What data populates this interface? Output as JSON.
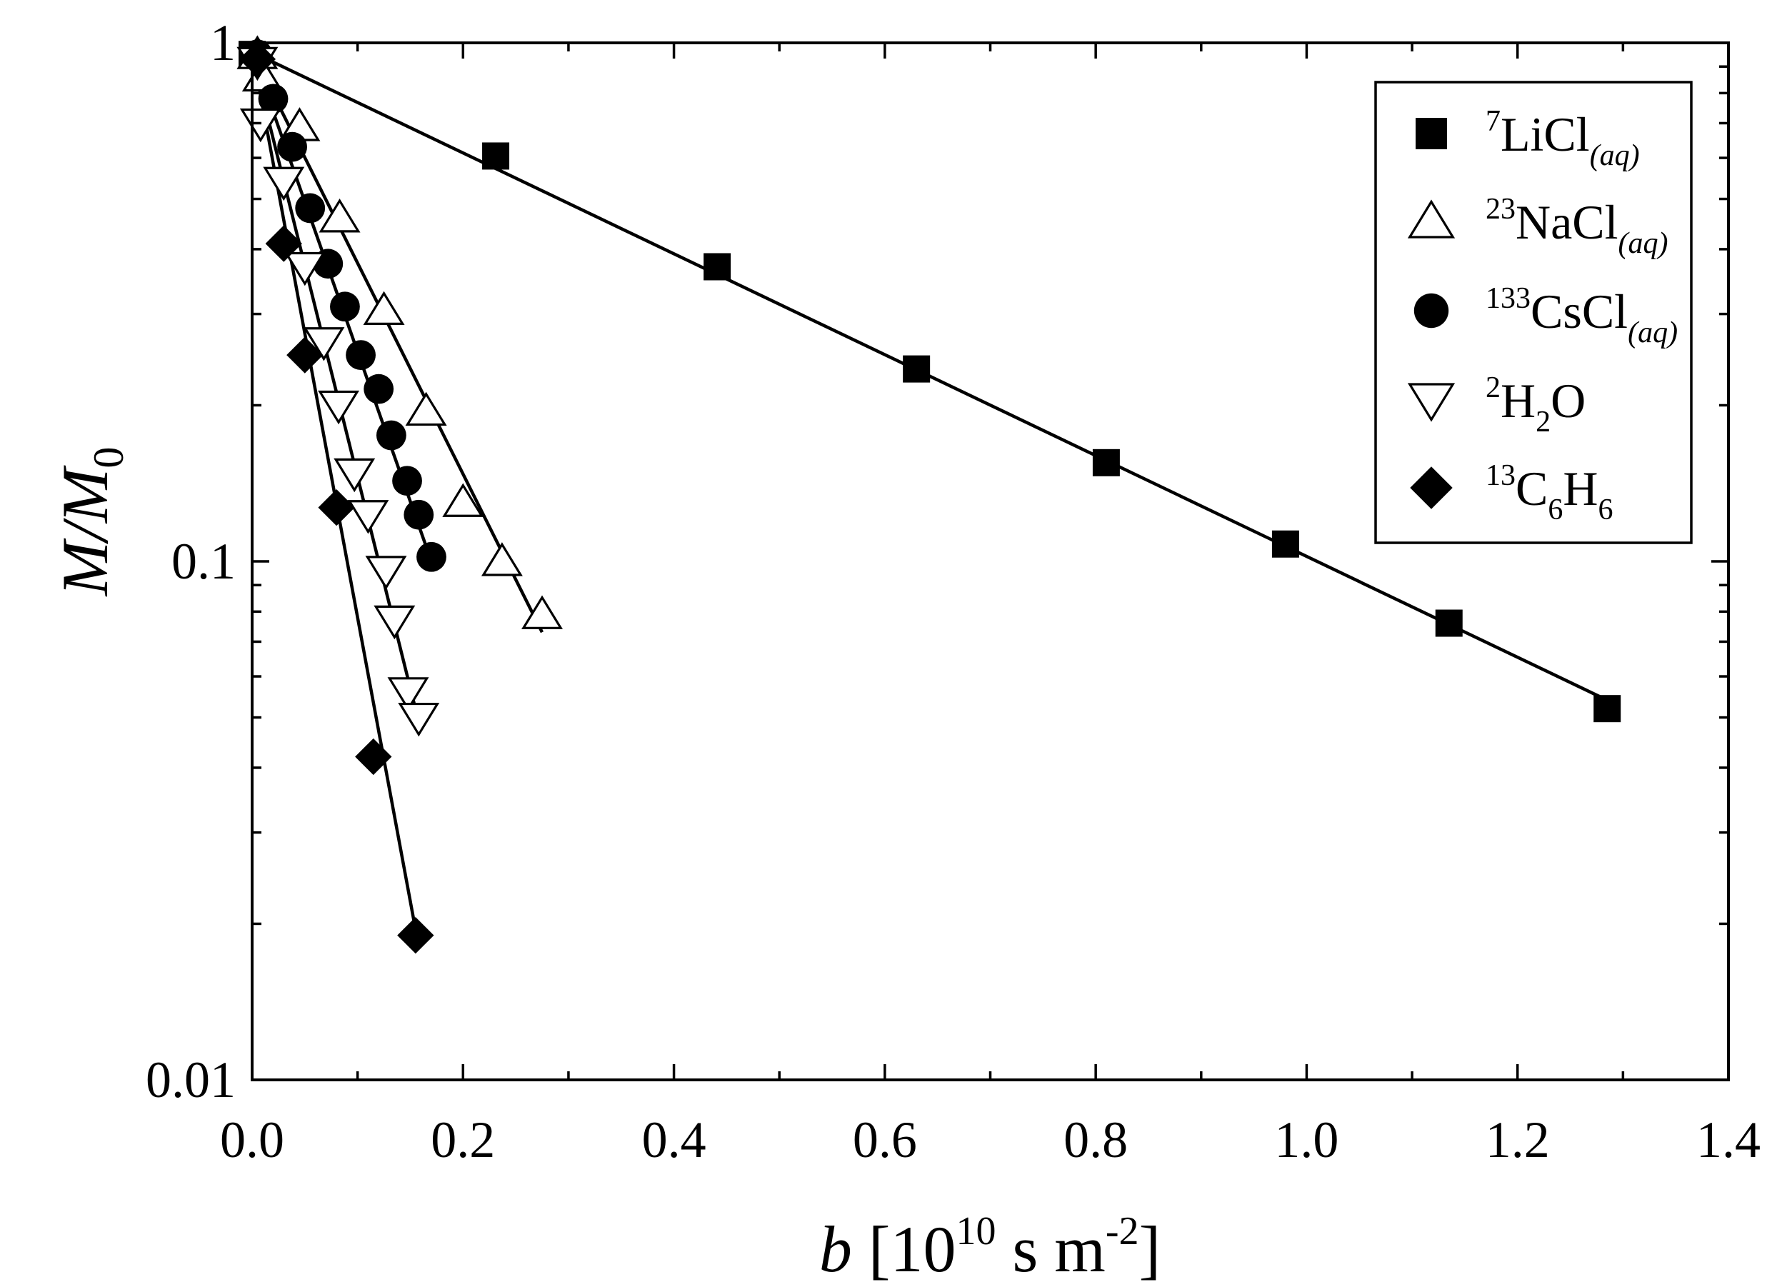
{
  "chart_data": {
    "type": "scatter",
    "xlabel": {
      "var": "b",
      "text": " [10",
      "sup": "10",
      "unit": " s m",
      "unit_sup": "-2",
      "close": "]"
    },
    "ylabel": {
      "var": "M",
      "slash": "/",
      "var2": "M",
      "sub": "0"
    },
    "xlim": [
      0.0,
      1.4
    ],
    "ylim": [
      0.01,
      1
    ],
    "y_scale": "log",
    "x_ticks": [
      {
        "value": 0.0,
        "label": "0.0"
      },
      {
        "value": 0.2,
        "label": "0.2"
      },
      {
        "value": 0.4,
        "label": "0.4"
      },
      {
        "value": 0.6,
        "label": "0.6"
      },
      {
        "value": 0.8,
        "label": "0.8"
      },
      {
        "value": 1.0,
        "label": "1.0"
      },
      {
        "value": 1.2,
        "label": "1.2"
      },
      {
        "value": 1.4,
        "label": "1.4"
      }
    ],
    "y_ticks": [
      {
        "value": 0.01,
        "label": "0.01"
      },
      {
        "value": 0.1,
        "label": "0.1"
      },
      {
        "value": 1,
        "label": "1"
      }
    ],
    "legend_position": "top-right",
    "grid": false,
    "series": [
      {
        "key": "licl",
        "marker": "square",
        "legend": {
          "sup": "7",
          "base": "LiCl",
          "sub": "(aq)"
        },
        "points": [
          [
            0.0,
            0.95
          ],
          [
            0.231,
            0.605
          ],
          [
            0.441,
            0.37
          ],
          [
            0.63,
            0.235
          ],
          [
            0.81,
            0.155
          ],
          [
            0.98,
            0.108
          ],
          [
            1.135,
            0.076
          ],
          [
            1.285,
            0.052
          ]
        ],
        "fit": [
          [
            0.0,
            0.96
          ],
          [
            1.285,
            0.054
          ]
        ]
      },
      {
        "key": "nacl",
        "marker": "triangle-up-open",
        "legend": {
          "sup": "23",
          "base": "NaCl",
          "sub": "(aq)"
        },
        "points": [
          [
            0.005,
            0.95
          ],
          [
            0.01,
            0.86
          ],
          [
            0.045,
            0.69
          ],
          [
            0.083,
            0.46
          ],
          [
            0.125,
            0.305
          ],
          [
            0.165,
            0.195
          ],
          [
            0.2,
            0.13
          ],
          [
            0.237,
            0.1
          ],
          [
            0.275,
            0.079
          ]
        ],
        "fit": [
          [
            0.0,
            0.96
          ],
          [
            0.275,
            0.073
          ]
        ]
      },
      {
        "key": "cscl",
        "marker": "circle",
        "legend": {
          "sup": "133",
          "base": "CsCl",
          "sub": "(aq)"
        },
        "points": [
          [
            0.005,
            0.95
          ],
          [
            0.02,
            0.78
          ],
          [
            0.038,
            0.63
          ],
          [
            0.055,
            0.48
          ],
          [
            0.072,
            0.375
          ],
          [
            0.088,
            0.31
          ],
          [
            0.103,
            0.25
          ],
          [
            0.12,
            0.215
          ],
          [
            0.132,
            0.175
          ],
          [
            0.147,
            0.143
          ],
          [
            0.158,
            0.123
          ],
          [
            0.17,
            0.102
          ]
        ],
        "fit": [
          [
            0.0,
            0.96
          ],
          [
            0.17,
            0.1
          ]
        ]
      },
      {
        "key": "h2o",
        "marker": "triangle-down-open",
        "legend": {
          "sup": "2",
          "base": "H",
          "sub": "2",
          "tail": "O"
        },
        "points": [
          [
            0.005,
            0.92
          ],
          [
            0.008,
            0.7
          ],
          [
            0.03,
            0.54
          ],
          [
            0.05,
            0.37
          ],
          [
            0.068,
            0.265
          ],
          [
            0.082,
            0.2
          ],
          [
            0.097,
            0.148
          ],
          [
            0.11,
            0.123
          ],
          [
            0.127,
            0.096
          ],
          [
            0.135,
            0.077
          ],
          [
            0.148,
            0.056
          ],
          [
            0.158,
            0.05
          ]
        ],
        "fit": [
          [
            0.0,
            0.95
          ],
          [
            0.158,
            0.049
          ]
        ]
      },
      {
        "key": "c6h6",
        "marker": "diamond",
        "legend": {
          "sup": "13",
          "base": "C",
          "sub": "6",
          "tail": "H",
          "sub2": "6"
        },
        "points": [
          [
            0.005,
            0.93
          ],
          [
            0.03,
            0.41
          ],
          [
            0.05,
            0.25
          ],
          [
            0.08,
            0.127
          ],
          [
            0.115,
            0.042
          ],
          [
            0.155,
            0.019
          ]
        ],
        "fit": [
          [
            0.0,
            0.97
          ],
          [
            0.155,
            0.0195
          ]
        ]
      }
    ]
  }
}
